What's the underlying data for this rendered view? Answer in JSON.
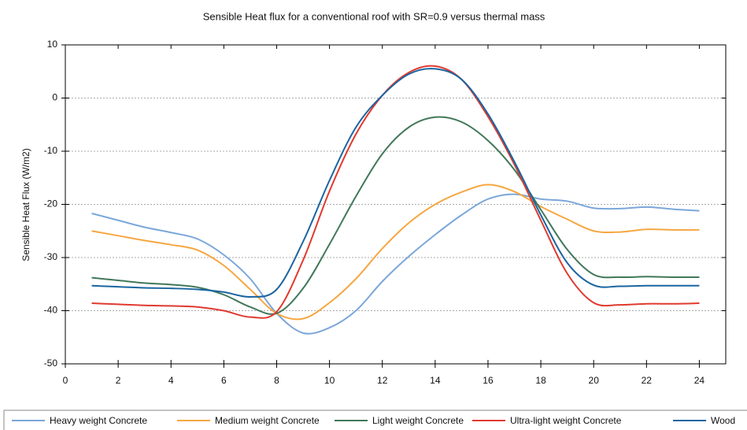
{
  "chart_data": {
    "type": "line",
    "title": "Sensible Heat flux for a conventional roof with SR=0.9 versus thermal mass",
    "y_label": "Sensible Heat Flux (W/m2)",
    "x": [
      1,
      2,
      3,
      4,
      5,
      6,
      7,
      8,
      9,
      10,
      11,
      12,
      13,
      14,
      15,
      16,
      17,
      18,
      19,
      20,
      21,
      22,
      23,
      24
    ],
    "series": [
      {
        "name": "Heavy weight Concrete",
        "color": "#7ba7d9",
        "values": [
          -21.7,
          -23,
          -24.3,
          -25.3,
          -26.5,
          -29.5,
          -34,
          -40.5,
          -44.2,
          -43.2,
          -40,
          -34.5,
          -29.8,
          -25.7,
          -22,
          -19,
          -18.1,
          -19,
          -19.4,
          -20.7,
          -20.8,
          -20.5,
          -20.9,
          -21.2
        ]
      },
      {
        "name": "Medium weight Concrete",
        "color": "#f5a742",
        "values": [
          -25,
          -25.9,
          -26.8,
          -27.6,
          -28.6,
          -31.5,
          -36,
          -40.5,
          -41.5,
          -38.5,
          -34,
          -28.3,
          -23.5,
          -20,
          -17.7,
          -16.3,
          -17.6,
          -20.4,
          -22.8,
          -25,
          -25.2,
          -24.7,
          -24.8,
          -24.8
        ]
      },
      {
        "name": "Light weight Concrete",
        "color": "#41785a",
        "values": [
          -33.8,
          -34.3,
          -34.8,
          -35.1,
          -35.6,
          -37,
          -39.3,
          -40.5,
          -35.8,
          -27.5,
          -18.5,
          -10.5,
          -5.5,
          -3.6,
          -4.5,
          -8,
          -13.5,
          -21,
          -28.5,
          -33.2,
          -33.7,
          -33.6,
          -33.7,
          -33.7
        ]
      },
      {
        "name": "Ultra-light weight Concrete",
        "color": "#e03a2f",
        "values": [
          -38.6,
          -38.8,
          -39,
          -39.1,
          -39.3,
          -40,
          -41.2,
          -40.2,
          -30.5,
          -17.5,
          -6.8,
          0.5,
          4.8,
          6,
          3.5,
          -3.5,
          -12.5,
          -23,
          -33,
          -38.5,
          -38.9,
          -38.7,
          -38.7,
          -38.6
        ]
      },
      {
        "name": "Wood",
        "color": "#1a65a0",
        "values": [
          -35.3,
          -35.5,
          -35.7,
          -35.8,
          -36,
          -36.5,
          -37.4,
          -36,
          -27,
          -15.5,
          -5.5,
          0.5,
          4.5,
          5.5,
          3.5,
          -3,
          -12,
          -22,
          -31,
          -35.2,
          -35.4,
          -35.3,
          -35.3,
          -35.3
        ]
      }
    ],
    "xlim": [
      0,
      25
    ],
    "ylim": [
      -50,
      10
    ],
    "xticks": [
      0,
      2,
      4,
      6,
      8,
      10,
      12,
      14,
      16,
      18,
      20,
      22,
      24
    ],
    "yticks": [
      -50,
      -40,
      -30,
      -20,
      -10,
      0,
      10
    ],
    "grid": true,
    "legend": "bottom"
  }
}
